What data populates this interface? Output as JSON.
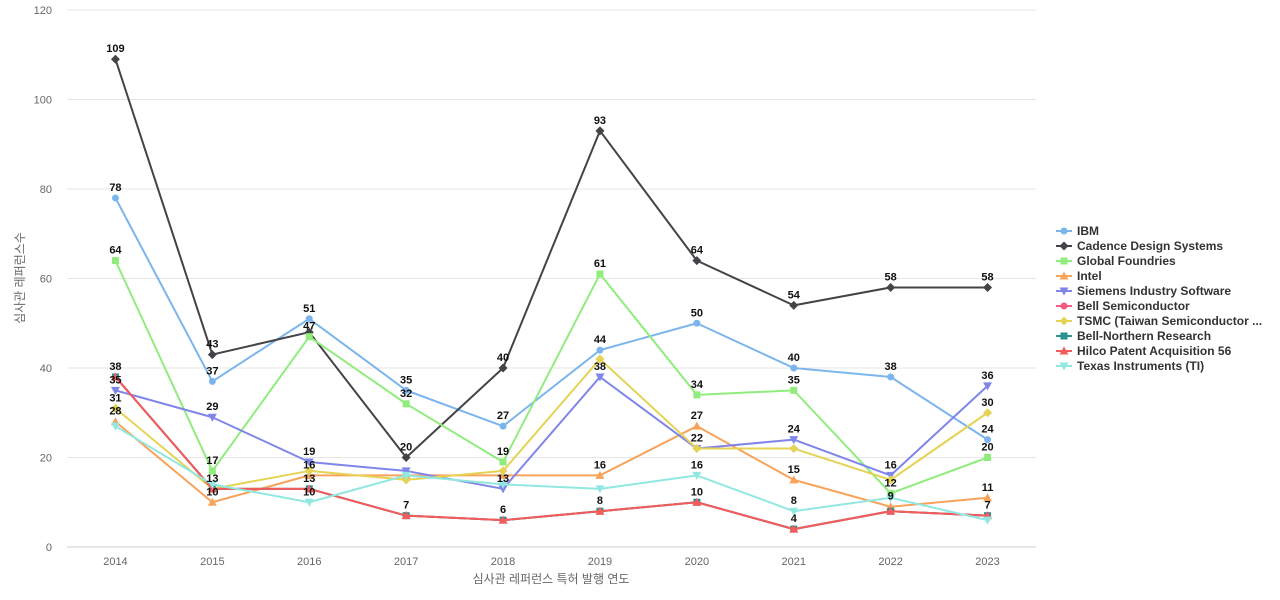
{
  "chart_data": {
    "type": "line",
    "xlabel": "심사관 레퍼런스 특허 발행 연도",
    "ylabel": "심사관 레퍼런스수",
    "categories": [
      "2014",
      "2015",
      "2016",
      "2017",
      "2018",
      "2019",
      "2020",
      "2021",
      "2022",
      "2023"
    ],
    "ylim": [
      0,
      120
    ],
    "yticks": [
      "0",
      "20",
      "40",
      "60",
      "80",
      "100",
      "120"
    ],
    "grid": true,
    "legend_position": "right",
    "series": [
      {
        "name": "IBM",
        "color": "#7cb5ec",
        "marker": "circle",
        "values": [
          78,
          37,
          51,
          35,
          27,
          44,
          50,
          40,
          38,
          24
        ],
        "labels": [
          true,
          true,
          true,
          true,
          true,
          true,
          true,
          true,
          true,
          true
        ]
      },
      {
        "name": "Cadence Design Systems",
        "color": "#434348",
        "marker": "diamond",
        "values": [
          109,
          43,
          48,
          20,
          40,
          93,
          64,
          54,
          58,
          58
        ],
        "labels": [
          true,
          true,
          false,
          true,
          true,
          true,
          true,
          true,
          true,
          true
        ]
      },
      {
        "name": "Global Foundries",
        "color": "#90ed7d",
        "marker": "square",
        "values": [
          64,
          17,
          47,
          32,
          19,
          61,
          34,
          35,
          12,
          20
        ],
        "labels": [
          true,
          true,
          true,
          true,
          true,
          true,
          true,
          true,
          true,
          true
        ]
      },
      {
        "name": "Intel",
        "color": "#f7a35c",
        "marker": "triangle",
        "values": [
          28,
          10,
          16,
          16,
          16,
          16,
          27,
          15,
          9,
          11
        ],
        "labels": [
          true,
          true,
          true,
          false,
          false,
          true,
          true,
          true,
          true,
          true
        ]
      },
      {
        "name": "Siemens Industry Software",
        "color": "#8085e9",
        "marker": "triangle-down",
        "values": [
          35,
          29,
          19,
          17,
          13,
          38,
          22,
          24,
          16,
          36
        ],
        "labels": [
          true,
          true,
          true,
          false,
          true,
          true,
          true,
          true,
          true,
          true
        ]
      },
      {
        "name": "Bell Semiconductor",
        "color": "#f15c80",
        "marker": "circle",
        "values": [
          38,
          13,
          13,
          7,
          6,
          8,
          10,
          4,
          8,
          7
        ],
        "labels": [
          true,
          true,
          true,
          true,
          true,
          true,
          true,
          true,
          false,
          true
        ]
      },
      {
        "name": "TSMC (Taiwan Semiconductor ...",
        "color": "#e4d354",
        "marker": "diamond",
        "values": [
          31,
          13,
          17,
          15,
          17,
          42,
          22,
          22,
          15,
          30
        ],
        "labels": [
          true,
          false,
          false,
          false,
          false,
          false,
          false,
          false,
          false,
          true
        ]
      },
      {
        "name": "Bell-Northern Research",
        "color": "#2b908f",
        "marker": "square",
        "values": [
          38,
          13,
          13,
          7,
          6,
          8,
          10,
          4,
          8,
          7
        ],
        "labels": [
          false,
          false,
          false,
          false,
          false,
          false,
          false,
          false,
          false,
          false
        ]
      },
      {
        "name": "Hilco Patent Acquisition 56",
        "color": "#f45b5b",
        "marker": "triangle",
        "values": [
          38,
          13,
          13,
          7,
          6,
          8,
          10,
          4,
          8,
          7
        ],
        "labels": [
          false,
          false,
          false,
          false,
          false,
          false,
          false,
          false,
          false,
          false
        ]
      },
      {
        "name": "Texas Instruments (TI)",
        "color": "#91e8e1",
        "marker": "triangle-down",
        "values": [
          27,
          14,
          10,
          16,
          14,
          13,
          16,
          8,
          11,
          6
        ],
        "labels": [
          false,
          false,
          true,
          false,
          false,
          false,
          true,
          true,
          false,
          false
        ]
      }
    ]
  }
}
